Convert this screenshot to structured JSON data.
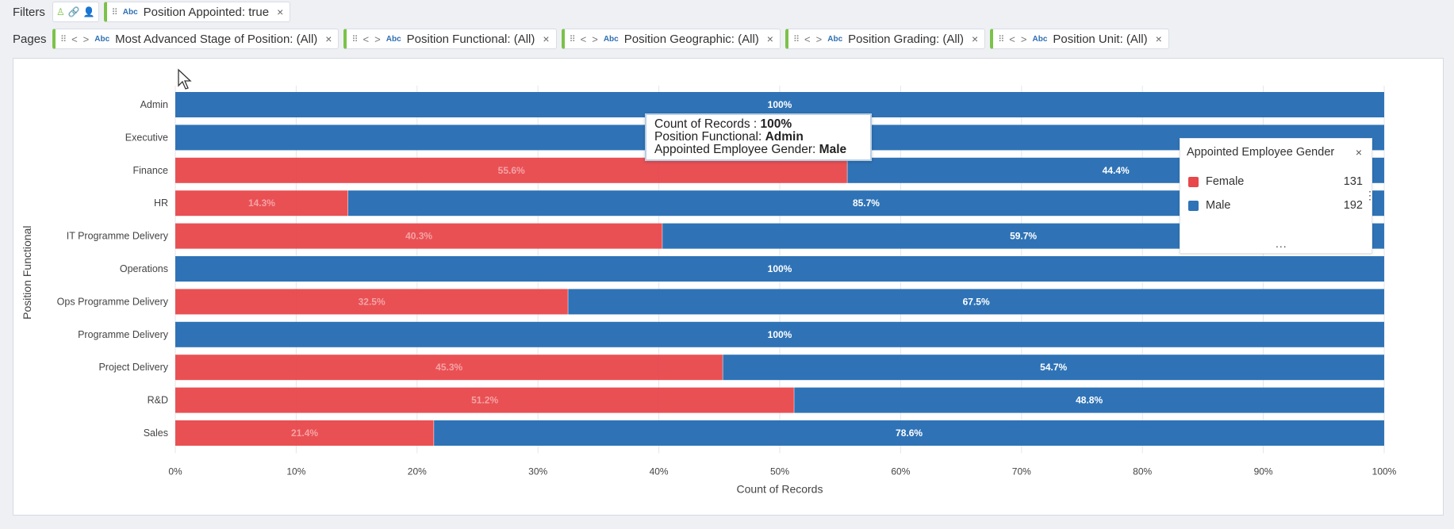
{
  "filters": {
    "label": "Filters",
    "pill": {
      "type": "Abc",
      "text": "Position Appointed: true",
      "close": "×"
    }
  },
  "pages": {
    "label": "Pages",
    "pills": [
      {
        "type": "Abc",
        "text": "Most Advanced Stage of Position: (All)",
        "close": "×"
      },
      {
        "type": "Abc",
        "text": "Position Functional: (All)",
        "close": "×"
      },
      {
        "type": "Abc",
        "text": "Position Geographic: (All)",
        "close": "×"
      },
      {
        "type": "Abc",
        "text": "Position Grading: (All)",
        "close": "×"
      },
      {
        "type": "Abc",
        "text": "Position Unit: (All)",
        "close": "×"
      }
    ]
  },
  "tooltip": {
    "line1_label": "Count of Records : ",
    "line1_value": "100%",
    "line2_label": "Position Functional: ",
    "line2_value": "Admin",
    "line3_label": "Appointed Employee Gender: ",
    "line3_value": "Male"
  },
  "legend": {
    "title": "Appointed Employee Gender",
    "close": "×",
    "more": "...",
    "menu": "⋮",
    "items": [
      {
        "label": "Female",
        "count": "131",
        "color": "#e8474b"
      },
      {
        "label": "Male",
        "count": "192",
        "color": "#2f73b6"
      }
    ]
  },
  "chart_data": {
    "type": "bar",
    "orientation": "horizontal",
    "stacked": "100%",
    "xlabel": "Count of Records",
    "ylabel": "Position Functional",
    "xlim": [
      0,
      100
    ],
    "xticks": [
      "0%",
      "10%",
      "20%",
      "30%",
      "40%",
      "50%",
      "60%",
      "70%",
      "80%",
      "90%",
      "100%"
    ],
    "grid": true,
    "categories": [
      "Admin",
      "Executive",
      "Finance",
      "HR",
      "IT Programme Delivery",
      "Operations",
      "Ops Programme Delivery",
      "Programme Delivery",
      "Project Delivery",
      "R&D",
      "Sales"
    ],
    "series": [
      {
        "name": "Female",
        "color": "#e8474b",
        "values": [
          0,
          0,
          55.6,
          14.3,
          40.3,
          0,
          32.5,
          0,
          45.3,
          51.2,
          21.4
        ],
        "labels": [
          "",
          "",
          "55.6%",
          "14.3%",
          "40.3%",
          "",
          "32.5%",
          "",
          "45.3%",
          "51.2%",
          "21.4%"
        ]
      },
      {
        "name": "Male",
        "color": "#2f73b6",
        "values": [
          100,
          100,
          44.4,
          85.7,
          59.7,
          100,
          67.5,
          100,
          54.7,
          48.8,
          78.6
        ],
        "labels": [
          "100%",
          "",
          "44.4%",
          "85.7%",
          "59.7%",
          "100%",
          "67.5%",
          "100%",
          "54.7%",
          "48.8%",
          "78.6%"
        ]
      }
    ]
  }
}
